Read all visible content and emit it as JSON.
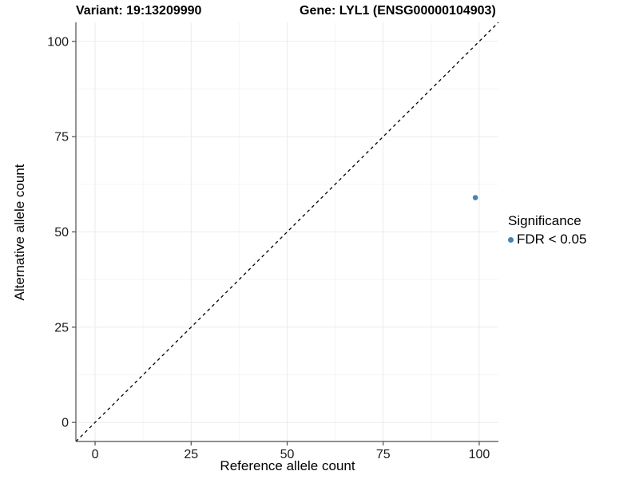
{
  "chart_data": {
    "type": "scatter",
    "title_left": "Variant: 19:13209990",
    "title_right": "Gene: LYL1 (ENSG00000104903)",
    "xlabel": "Reference allele count",
    "ylabel": "Alternative allele count",
    "xlim": [
      -5,
      105
    ],
    "ylim": [
      -5,
      105
    ],
    "x_ticks": [
      0,
      25,
      50,
      75,
      100
    ],
    "y_ticks": [
      0,
      25,
      50,
      75,
      100
    ],
    "x_minor_ticks": [
      12.5,
      37.5,
      62.5,
      87.5
    ],
    "y_minor_ticks": [
      12.5,
      37.5,
      62.5,
      87.5
    ],
    "grid": "major+minor",
    "identity_line": {
      "style": "dashed",
      "x1": -5,
      "y1": -5,
      "x2": 105,
      "y2": 105
    },
    "series": [
      {
        "name": "FDR < 0.05",
        "color": "#4682B4",
        "points": [
          {
            "x": 99,
            "y": 59
          }
        ]
      }
    ],
    "legend": {
      "title": "Significance",
      "position": "right",
      "items": [
        {
          "label": "FDR < 0.05",
          "color": "#4682B4"
        }
      ]
    }
  },
  "colors": {
    "background": "#FFFFFF",
    "axis_line": "#4D4D4D",
    "tick_mark": "#4D4D4D",
    "grid_major": "#EBEBEB",
    "grid_minor": "#F5F5F5",
    "tick_text": "#1A1A1A",
    "identity_line": "#000000"
  }
}
